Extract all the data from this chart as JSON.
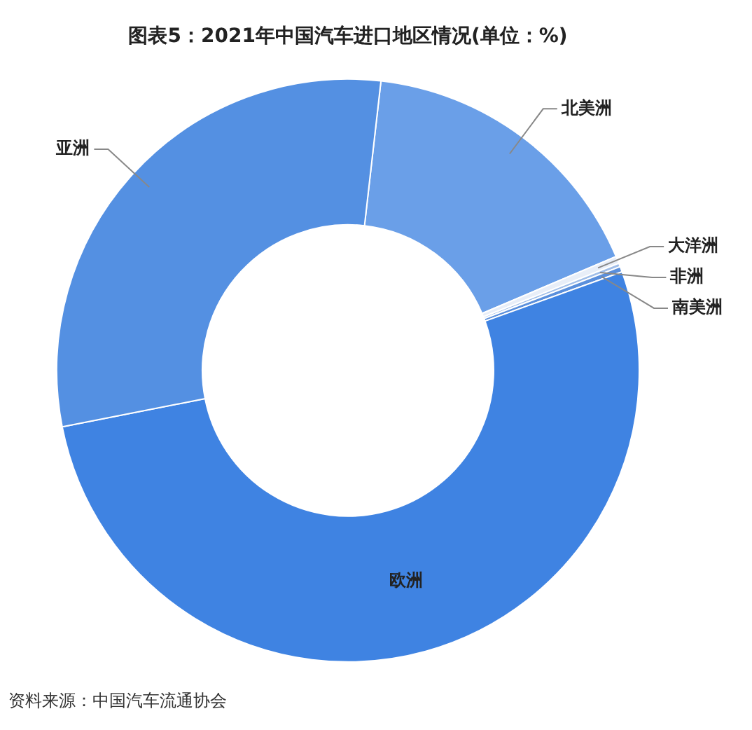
{
  "chart_data": {
    "type": "donut",
    "title": "图表5：2021年中国汽车进口地区情况(单位：%)",
    "categories": [
      "北美洲",
      "大洋洲",
      "非洲",
      "南美洲",
      "欧洲",
      "亚洲"
    ],
    "values": [
      16.8,
      0.4,
      0.2,
      0.3,
      52.4,
      29.9
    ],
    "colors": [
      "#6a9fe8",
      "#e8eef8",
      "#9fbde8",
      "#5a8fdc",
      "#3f83e2",
      "#5490e2"
    ],
    "legend": false,
    "annotations": [
      "资料来源：中国汽车流通协会"
    ]
  }
}
